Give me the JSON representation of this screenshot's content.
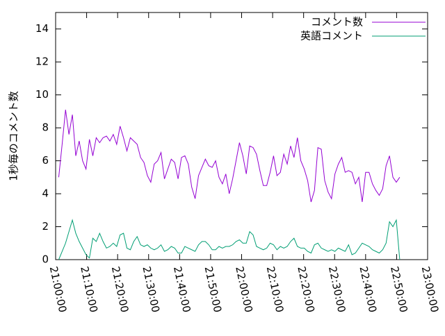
{
  "chart_data": {
    "type": "line",
    "ylabel": "1秒毎のコメント数",
    "legend": "top-right",
    "grid": false,
    "x": [
      "21:01:00",
      "21:02:06",
      "21:03:12",
      "21:04:18",
      "21:05:24",
      "21:06:30",
      "21:07:36",
      "21:08:42",
      "21:09:48",
      "21:10:54",
      "21:12:00",
      "21:13:06",
      "21:14:12",
      "21:15:18",
      "21:16:24",
      "21:17:30",
      "21:18:36",
      "21:19:42",
      "21:20:48",
      "21:21:54",
      "21:23:00",
      "21:24:06",
      "21:25:12",
      "21:26:18",
      "21:27:24",
      "21:28:30",
      "21:29:36",
      "21:30:42",
      "21:31:48",
      "21:32:54",
      "21:34:00",
      "21:35:06",
      "21:36:12",
      "21:37:18",
      "21:38:24",
      "21:39:30",
      "21:40:36",
      "21:41:42",
      "21:42:48",
      "21:43:54",
      "21:45:00",
      "21:46:06",
      "21:47:12",
      "21:48:18",
      "21:49:24",
      "21:50:30",
      "21:51:36",
      "21:52:42",
      "21:53:48",
      "21:54:54",
      "21:56:00",
      "21:57:06",
      "21:58:12",
      "21:59:18",
      "22:00:24",
      "22:01:30",
      "22:02:36",
      "22:03:42",
      "22:04:48",
      "22:05:54",
      "22:07:00",
      "22:08:06",
      "22:09:12",
      "22:10:18",
      "22:11:24",
      "22:12:30",
      "22:13:36",
      "22:14:42",
      "22:15:48",
      "22:16:54",
      "22:18:00",
      "22:19:06",
      "22:20:12",
      "22:21:18",
      "22:22:24",
      "22:23:30",
      "22:24:36",
      "22:25:42",
      "22:26:48",
      "22:27:54",
      "22:29:00",
      "22:30:06",
      "22:31:12",
      "22:32:18",
      "22:33:24",
      "22:34:30",
      "22:35:36",
      "22:36:42",
      "22:37:48",
      "22:38:54",
      "22:40:00",
      "22:41:06",
      "22:42:12",
      "22:43:18",
      "22:44:24",
      "22:45:30",
      "22:46:36",
      "22:47:42",
      "22:48:48",
      "22:49:54",
      "22:51:00"
    ],
    "series": [
      {
        "name": "コメント数",
        "color": "#9400d3",
        "values": [
          5.0,
          7.0,
          9.1,
          7.6,
          8.8,
          6.3,
          7.2,
          6.0,
          5.5,
          7.3,
          6.3,
          7.4,
          7.1,
          7.4,
          7.5,
          7.2,
          7.6,
          7.0,
          8.1,
          7.4,
          6.6,
          7.4,
          7.2,
          7.0,
          6.2,
          5.9,
          5.1,
          4.7,
          5.8,
          6.0,
          6.5,
          4.9,
          5.5,
          6.1,
          5.9,
          4.9,
          6.2,
          6.3,
          5.8,
          4.4,
          3.7,
          5.1,
          5.6,
          6.1,
          5.7,
          5.6,
          6.0,
          5.0,
          4.6,
          5.2,
          4.0,
          4.9,
          6.0,
          7.1,
          6.3,
          5.2,
          6.9,
          6.8,
          6.4,
          5.4,
          4.5,
          4.5,
          5.3,
          6.3,
          5.1,
          5.3,
          6.4,
          5.8,
          6.9,
          6.2,
          7.4,
          6.0,
          5.5,
          4.8,
          3.5,
          4.2,
          6.8,
          6.7,
          4.8,
          4.1,
          3.7,
          5.2,
          5.8,
          6.2,
          5.3,
          5.4,
          5.3,
          4.6,
          5.0,
          3.5,
          5.3,
          5.3,
          4.6,
          4.2,
          3.9,
          4.3,
          5.7,
          6.3,
          5.0,
          4.7,
          5.0
        ]
      },
      {
        "name": "英語コメント",
        "color": "#009e73",
        "values": [
          0.0,
          0.5,
          1.0,
          1.7,
          2.4,
          1.6,
          1.1,
          0.7,
          0.3,
          0.1,
          1.3,
          1.1,
          1.6,
          1.1,
          0.7,
          0.8,
          1.0,
          0.8,
          1.5,
          1.6,
          0.7,
          0.6,
          1.1,
          1.4,
          0.9,
          0.8,
          0.9,
          0.7,
          0.6,
          0.7,
          0.9,
          0.5,
          0.6,
          0.8,
          0.7,
          0.4,
          0.4,
          0.8,
          0.7,
          0.6,
          0.5,
          0.9,
          1.1,
          1.1,
          0.9,
          0.6,
          0.6,
          0.8,
          0.7,
          0.8,
          0.8,
          0.9,
          1.1,
          1.2,
          1.0,
          1.0,
          1.7,
          1.5,
          0.8,
          0.7,
          0.6,
          0.7,
          1.0,
          0.9,
          0.6,
          0.8,
          0.7,
          0.8,
          1.1,
          1.3,
          0.8,
          0.7,
          0.7,
          0.5,
          0.4,
          0.9,
          1.0,
          0.7,
          0.6,
          0.5,
          0.6,
          0.5,
          0.7,
          0.6,
          0.5,
          0.9,
          0.3,
          0.4,
          0.7,
          1.0,
          0.9,
          0.8,
          0.6,
          0.5,
          0.4,
          0.6,
          1.0,
          2.3,
          2.0,
          2.4,
          0.0
        ]
      }
    ],
    "xlim": [
      "21:00:00",
      "23:00:00"
    ],
    "xticks": [
      "21:00:00",
      "21:10:00",
      "21:20:00",
      "21:30:00",
      "21:40:00",
      "21:50:00",
      "22:00:00",
      "22:10:00",
      "22:20:00",
      "22:30:00",
      "22:40:00",
      "22:50:00",
      "23:00:00"
    ],
    "ylim": [
      0,
      15
    ],
    "yticks": [
      0,
      2,
      4,
      6,
      8,
      10,
      12,
      14
    ]
  }
}
